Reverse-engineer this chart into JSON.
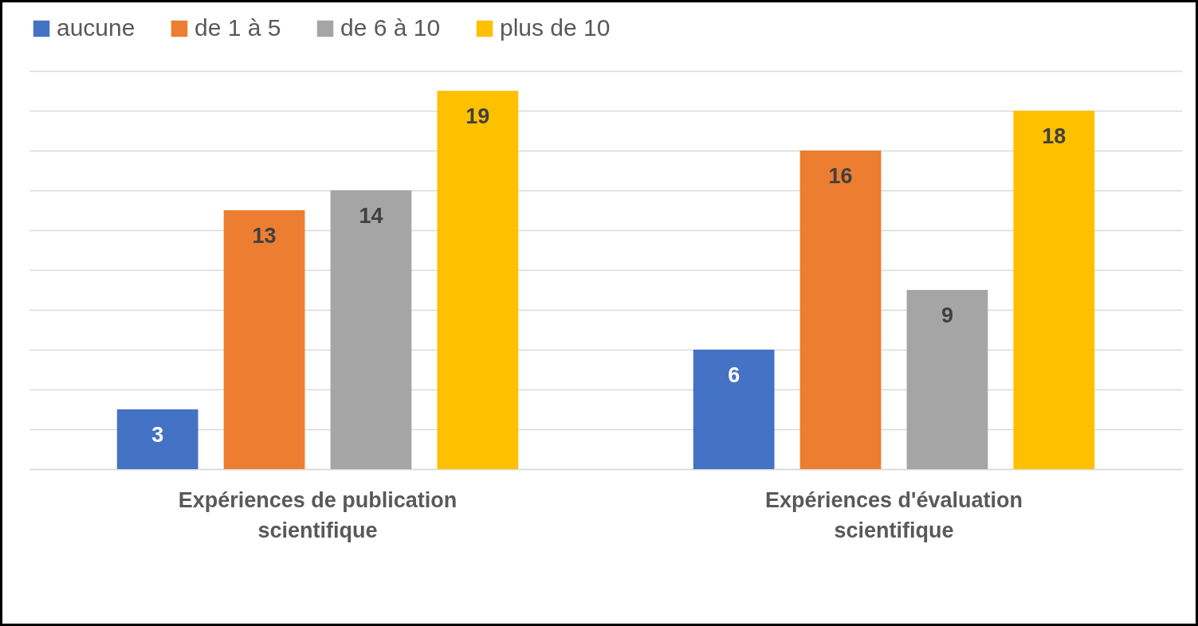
{
  "chart_data": {
    "type": "bar",
    "categories": [
      "Expériences de publication scientifique",
      "Expériences d'évaluation scientifique"
    ],
    "series": [
      {
        "name": "aucune",
        "color": "#4472c4",
        "values": [
          3,
          6
        ]
      },
      {
        "name": "de 1 à 5",
        "color": "#ed7d31",
        "values": [
          13,
          16
        ]
      },
      {
        "name": "de 6 à 10",
        "color": "#a5a5a5",
        "values": [
          14,
          9
        ]
      },
      {
        "name": "plus de 10",
        "color": "#ffc000",
        "values": [
          19,
          18
        ]
      }
    ],
    "ylim": [
      0,
      20
    ],
    "yticks": [
      {
        "value": 0,
        "label": null
      },
      {
        "value": 2,
        "label": null
      },
      {
        "value": 4,
        "label": null
      },
      {
        "value": 6,
        "label": null
      },
      {
        "value": 8,
        "label": null
      },
      {
        "value": 10,
        "label": null
      },
      {
        "value": 12,
        "label": null
      },
      {
        "value": 14,
        "label": null
      },
      {
        "value": 16,
        "label": null
      },
      {
        "value": 18,
        "label": null
      },
      {
        "value": 20,
        "label": null
      }
    ],
    "tick_labels": "x",
    "grid": "y",
    "legend": "top",
    "data_labels": true
  }
}
